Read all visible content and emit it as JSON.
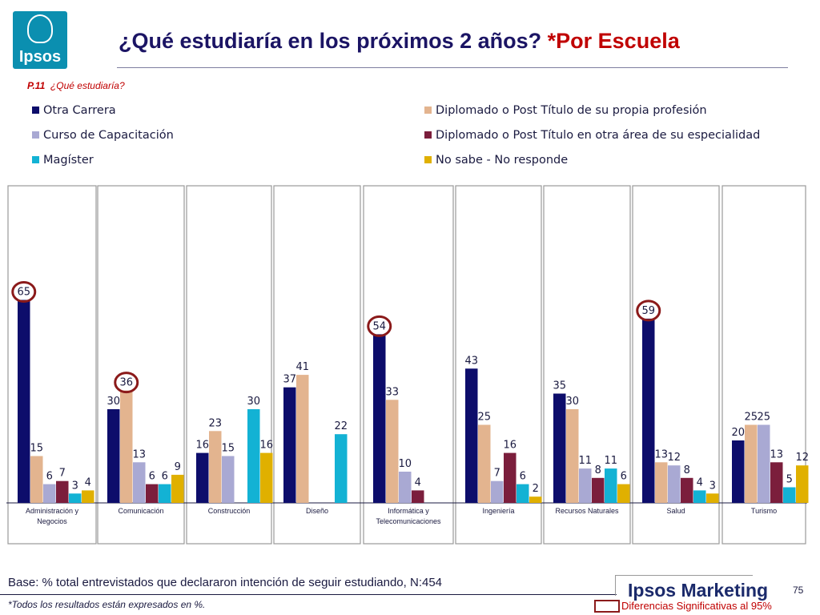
{
  "header": {
    "logo_text": "Ipsos",
    "title_main": "¿Qué estudiaría en los próximos 2 años? ",
    "title_highlight": "*Por Escuela"
  },
  "question": {
    "code": "P.11",
    "text": "¿Qué estudiaría?"
  },
  "colors": {
    "otra_carrera": "#0d0d6b",
    "diplomado_propia": "#e3b48f",
    "curso": "#a9a9d3",
    "diplomado_otra": "#7b1e3c",
    "magister": "#13b2d4",
    "no_sabe": "#e0b000",
    "highlight_circle": "#8b1a1a",
    "panel_border": "#9a9a9a"
  },
  "chart_data": {
    "type": "bar",
    "categories": [
      "Administración y Negocios",
      "Comunicación",
      "Construcción",
      "Diseño",
      "Informática y Telecomunicaciones",
      "Ingeniería",
      "Recursos Naturales",
      "Salud",
      "Turismo"
    ],
    "series": [
      {
        "name": "Otra Carrera",
        "values": [
          65,
          30,
          16,
          37,
          54,
          43,
          35,
          59,
          20
        ]
      },
      {
        "name": "Diplomado o Post Título de su propia profesión",
        "values": [
          15,
          36,
          23,
          41,
          33,
          25,
          30,
          13,
          25
        ]
      },
      {
        "name": "Curso de Capacitación",
        "values": [
          6,
          13,
          15,
          null,
          10,
          7,
          11,
          12,
          25
        ]
      },
      {
        "name": "Diplomado o Post Título en otra área de su especialidad",
        "values": [
          7,
          6,
          null,
          null,
          4,
          16,
          8,
          8,
          13
        ]
      },
      {
        "name": "Magíster",
        "values": [
          3,
          6,
          30,
          22,
          null,
          6,
          11,
          4,
          5
        ]
      },
      {
        "name": "No sabe - No responde",
        "values": [
          4,
          9,
          16,
          null,
          null,
          2,
          6,
          3,
          12
        ]
      }
    ],
    "ylim": [
      0,
      70
    ],
    "highlighted": [
      {
        "category": "Administración y Negocios",
        "series": "Otra Carrera"
      },
      {
        "category": "Comunicación",
        "series": "Diplomado o Post Título de su propia profesión"
      },
      {
        "category": "Informática y Telecomunicaciones",
        "series": "Otra Carrera"
      },
      {
        "category": "Salud",
        "series": "Otra Carrera"
      }
    ],
    "legend_position": "top"
  },
  "footer": {
    "base": "Base: % total entrevistados que declararon intención de seguir estudiando, N:454",
    "note": "*Todos los resultados están expresados en %.",
    "brand": "Ipsos Marketing",
    "page": "75",
    "significance_label": "Diferencias Significativas al 95%"
  }
}
